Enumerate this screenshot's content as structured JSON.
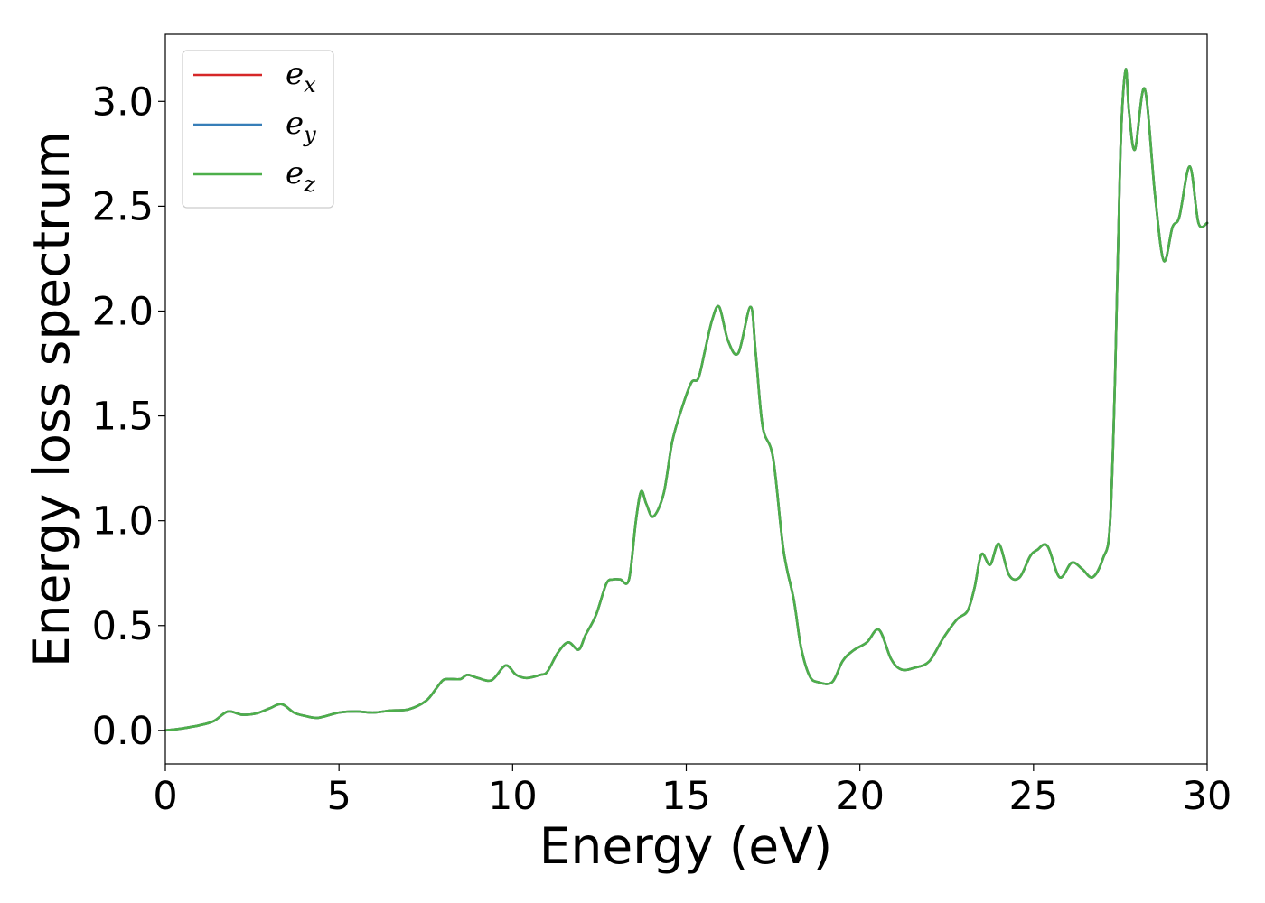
{
  "chart_data": {
    "type": "line",
    "title": "",
    "xlabel": "Energy (eV)",
    "ylabel": "Energy loss spectrum",
    "xlim": [
      0,
      30
    ],
    "ylim": [
      -0.16,
      3.32
    ],
    "xticks": [
      "0",
      "5",
      "10",
      "15",
      "20",
      "25",
      "30"
    ],
    "yticks": [
      "0.0",
      "0.5",
      "1.0",
      "1.5",
      "2.0",
      "2.5",
      "3.0"
    ],
    "grid": false,
    "legend_position": "upper-left",
    "x": [
      0,
      0.5,
      1.0,
      1.4,
      1.8,
      2.2,
      2.6,
      3.0,
      3.35,
      3.7,
      4.0,
      4.4,
      5.0,
      5.5,
      6.0,
      6.5,
      7.0,
      7.5,
      7.8,
      8.0,
      8.2,
      8.5,
      8.7,
      9.0,
      9.4,
      9.8,
      10.1,
      10.4,
      10.8,
      11.0,
      11.3,
      11.6,
      11.9,
      12.1,
      12.4,
      12.7,
      12.9,
      13.1,
      13.35,
      13.55,
      13.7,
      13.85,
      14.05,
      14.35,
      14.6,
      14.9,
      15.15,
      15.35,
      15.55,
      15.75,
      15.95,
      16.2,
      16.5,
      16.85,
      17.0,
      17.2,
      17.5,
      17.8,
      18.1,
      18.3,
      18.55,
      18.8,
      19.2,
      19.5,
      19.8,
      20.2,
      20.55,
      20.9,
      21.2,
      21.6,
      22.0,
      22.4,
      22.8,
      23.1,
      23.3,
      23.5,
      23.75,
      24.0,
      24.3,
      24.6,
      24.9,
      25.1,
      25.4,
      25.75,
      26.1,
      26.4,
      26.7,
      27.0,
      27.2,
      27.35,
      27.5,
      27.65,
      27.75,
      27.92,
      28.2,
      28.5,
      28.75,
      29.0,
      29.2,
      29.5,
      29.75,
      30.0
    ],
    "series": [
      {
        "name": "e_x",
        "color": "#d62728",
        "values": [
          0.0,
          0.01,
          0.025,
          0.045,
          0.09,
          0.075,
          0.08,
          0.105,
          0.125,
          0.085,
          0.07,
          0.06,
          0.085,
          0.09,
          0.085,
          0.095,
          0.1,
          0.14,
          0.2,
          0.24,
          0.245,
          0.245,
          0.265,
          0.25,
          0.24,
          0.31,
          0.265,
          0.25,
          0.265,
          0.28,
          0.37,
          0.42,
          0.385,
          0.455,
          0.55,
          0.7,
          0.72,
          0.72,
          0.72,
          1.0,
          1.14,
          1.08,
          1.02,
          1.13,
          1.38,
          1.55,
          1.66,
          1.68,
          1.82,
          1.96,
          2.02,
          1.86,
          1.8,
          2.02,
          1.8,
          1.45,
          1.3,
          0.86,
          0.62,
          0.4,
          0.26,
          0.23,
          0.23,
          0.33,
          0.38,
          0.42,
          0.48,
          0.34,
          0.29,
          0.3,
          0.33,
          0.44,
          0.53,
          0.57,
          0.68,
          0.84,
          0.79,
          0.89,
          0.74,
          0.73,
          0.83,
          0.86,
          0.88,
          0.73,
          0.8,
          0.77,
          0.73,
          0.82,
          0.98,
          1.7,
          2.75,
          3.15,
          2.95,
          2.77,
          3.06,
          2.55,
          2.24,
          2.4,
          2.45,
          2.69,
          2.42,
          2.42
        ]
      },
      {
        "name": "e_y",
        "color": "#377eb8",
        "values": [
          0.0,
          0.01,
          0.025,
          0.045,
          0.09,
          0.075,
          0.08,
          0.105,
          0.125,
          0.085,
          0.07,
          0.06,
          0.085,
          0.09,
          0.085,
          0.095,
          0.1,
          0.14,
          0.2,
          0.24,
          0.245,
          0.245,
          0.265,
          0.25,
          0.24,
          0.31,
          0.265,
          0.25,
          0.265,
          0.28,
          0.37,
          0.42,
          0.385,
          0.455,
          0.55,
          0.7,
          0.72,
          0.72,
          0.72,
          1.0,
          1.14,
          1.08,
          1.02,
          1.13,
          1.38,
          1.55,
          1.66,
          1.68,
          1.82,
          1.96,
          2.02,
          1.86,
          1.8,
          2.02,
          1.8,
          1.45,
          1.3,
          0.86,
          0.62,
          0.4,
          0.26,
          0.23,
          0.23,
          0.33,
          0.38,
          0.42,
          0.48,
          0.34,
          0.29,
          0.3,
          0.33,
          0.44,
          0.53,
          0.57,
          0.68,
          0.84,
          0.79,
          0.89,
          0.74,
          0.73,
          0.83,
          0.86,
          0.88,
          0.73,
          0.8,
          0.77,
          0.73,
          0.82,
          0.98,
          1.7,
          2.75,
          3.15,
          2.95,
          2.77,
          3.06,
          2.55,
          2.24,
          2.4,
          2.45,
          2.69,
          2.42,
          2.42
        ]
      },
      {
        "name": "e_z",
        "color": "#4daf4a",
        "values": [
          0.0,
          0.01,
          0.025,
          0.045,
          0.09,
          0.075,
          0.08,
          0.105,
          0.125,
          0.085,
          0.07,
          0.06,
          0.085,
          0.09,
          0.085,
          0.095,
          0.1,
          0.14,
          0.2,
          0.24,
          0.245,
          0.245,
          0.265,
          0.25,
          0.24,
          0.31,
          0.265,
          0.25,
          0.265,
          0.28,
          0.37,
          0.42,
          0.385,
          0.455,
          0.55,
          0.7,
          0.72,
          0.72,
          0.72,
          1.0,
          1.14,
          1.08,
          1.02,
          1.13,
          1.38,
          1.55,
          1.66,
          1.68,
          1.82,
          1.96,
          2.02,
          1.86,
          1.8,
          2.02,
          1.8,
          1.45,
          1.3,
          0.86,
          0.62,
          0.4,
          0.26,
          0.23,
          0.23,
          0.33,
          0.38,
          0.42,
          0.48,
          0.34,
          0.29,
          0.3,
          0.33,
          0.44,
          0.53,
          0.57,
          0.68,
          0.84,
          0.79,
          0.89,
          0.74,
          0.73,
          0.83,
          0.86,
          0.88,
          0.73,
          0.8,
          0.77,
          0.73,
          0.82,
          0.98,
          1.7,
          2.75,
          3.15,
          2.95,
          2.77,
          3.06,
          2.55,
          2.24,
          2.4,
          2.45,
          2.69,
          2.42,
          2.42
        ]
      }
    ],
    "legend": [
      {
        "base": "e",
        "sub": "x"
      },
      {
        "base": "e",
        "sub": "y"
      },
      {
        "base": "e",
        "sub": "z"
      }
    ]
  }
}
